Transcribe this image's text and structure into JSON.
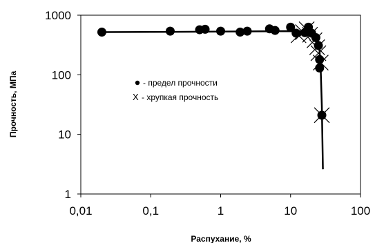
{
  "chart_data": {
    "type": "scatter",
    "xlabel": "Распухание, %",
    "ylabel": "Прочность, МПа",
    "xscale": "log",
    "yscale": "log",
    "xlim": [
      0.01,
      100
    ],
    "ylim": [
      1,
      1000
    ],
    "x_ticks": [
      "0,01",
      "0,1",
      "1",
      "10",
      "100"
    ],
    "y_ticks": [
      "1",
      "10",
      "100",
      "1000"
    ],
    "grid": false,
    "legend_position": "center-left",
    "series": [
      {
        "name": "- предел прочности",
        "marker": "filled-circle",
        "points": [
          {
            "x": 0.02,
            "y": 520
          },
          {
            "x": 0.19,
            "y": 540
          },
          {
            "x": 0.5,
            "y": 570
          },
          {
            "x": 0.6,
            "y": 580
          },
          {
            "x": 1.0,
            "y": 540
          },
          {
            "x": 1.9,
            "y": 520
          },
          {
            "x": 2.4,
            "y": 540
          },
          {
            "x": 5.0,
            "y": 590
          },
          {
            "x": 6.0,
            "y": 555
          },
          {
            "x": 10,
            "y": 630
          },
          {
            "x": 12,
            "y": 500
          },
          {
            "x": 16,
            "y": 510
          },
          {
            "x": 18,
            "y": 630
          },
          {
            "x": 20,
            "y": 500
          },
          {
            "x": 23,
            "y": 420
          },
          {
            "x": 25,
            "y": 310
          },
          {
            "x": 26,
            "y": 180
          },
          {
            "x": 26,
            "y": 130
          },
          {
            "x": 28,
            "y": 21
          }
        ]
      },
      {
        "name": "- хрупкая прочность",
        "legend_symbol": "X",
        "marker": "x",
        "points": [
          {
            "x": 13,
            "y": 460
          },
          {
            "x": 15,
            "y": 520
          },
          {
            "x": 17,
            "y": 580
          },
          {
            "x": 19,
            "y": 470
          },
          {
            "x": 22,
            "y": 380
          },
          {
            "x": 24,
            "y": 290
          },
          {
            "x": 25,
            "y": 230
          },
          {
            "x": 27,
            "y": 160
          },
          {
            "x": 28,
            "y": 21
          }
        ]
      },
      {
        "name": "",
        "marker": "none",
        "line": "solid",
        "points": [
          {
            "x": 0.02,
            "y": 520
          },
          {
            "x": 1,
            "y": 530
          },
          {
            "x": 10,
            "y": 540
          },
          {
            "x": 17,
            "y": 530
          },
          {
            "x": 21,
            "y": 470
          },
          {
            "x": 24,
            "y": 380
          },
          {
            "x": 26,
            "y": 250
          },
          {
            "x": 27,
            "y": 120
          },
          {
            "x": 28,
            "y": 30
          },
          {
            "x": 29,
            "y": 2.6
          }
        ]
      }
    ]
  }
}
